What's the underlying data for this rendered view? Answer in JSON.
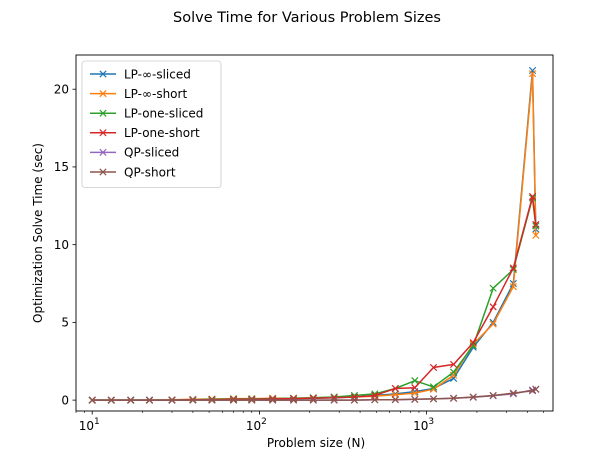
{
  "chart_data": {
    "type": "line",
    "title": "Solve Time for Various Problem Sizes",
    "xlabel": "Problem size (N)",
    "ylabel": "Optimization Solve Time (sec)",
    "xscale": "log",
    "xlim": [
      8,
      5700
    ],
    "ylim": [
      -0.7,
      22.2
    ],
    "xticks": [
      {
        "value": 10,
        "base": "10",
        "exp": "1"
      },
      {
        "value": 100,
        "base": "10",
        "exp": "2"
      },
      {
        "value": 1000,
        "base": "10",
        "exp": "3"
      }
    ],
    "yticks": [
      0,
      5,
      10,
      15,
      20
    ],
    "marker": "x",
    "legend_position": "top-left",
    "grid": false,
    "x": [
      10,
      13,
      17,
      22,
      30,
      40,
      52,
      70,
      90,
      120,
      160,
      210,
      280,
      370,
      490,
      650,
      850,
      1100,
      1450,
      1900,
      2500,
      3300,
      4300,
      4500
    ],
    "series": [
      {
        "name": "LP-∞-sliced",
        "color": "#1f77b4",
        "values": [
          0.0,
          0.0,
          0.0,
          0.0,
          0.0,
          0.02,
          0.03,
          0.05,
          0.05,
          0.08,
          0.1,
          0.12,
          0.15,
          0.2,
          0.3,
          0.4,
          0.55,
          0.75,
          1.4,
          3.4,
          5.0,
          7.5,
          21.2,
          11.0
        ]
      },
      {
        "name": "LP-∞-short",
        "color": "#ff7f0e",
        "values": [
          0.0,
          0.0,
          0.0,
          0.0,
          0.02,
          0.05,
          0.07,
          0.1,
          0.1,
          0.12,
          0.12,
          0.15,
          0.18,
          0.2,
          0.25,
          0.35,
          0.45,
          0.7,
          1.6,
          3.6,
          4.9,
          7.3,
          21.0,
          10.6
        ]
      },
      {
        "name": "LP-one-sliced",
        "color": "#2ca02c",
        "values": [
          0.0,
          0.0,
          0.0,
          0.0,
          0.0,
          0.03,
          0.05,
          0.07,
          0.08,
          0.1,
          0.12,
          0.15,
          0.2,
          0.3,
          0.4,
          0.75,
          1.25,
          0.85,
          1.8,
          3.5,
          7.2,
          8.4,
          13.0,
          11.2
        ]
      },
      {
        "name": "LP-one-short",
        "color": "#d62728",
        "values": [
          0.0,
          0.0,
          0.0,
          0.0,
          0.0,
          0.02,
          0.03,
          0.05,
          0.05,
          0.08,
          0.1,
          0.12,
          0.15,
          0.2,
          0.3,
          0.75,
          0.8,
          2.1,
          2.3,
          3.7,
          6.0,
          8.5,
          13.1,
          11.3
        ]
      },
      {
        "name": "QP-sliced",
        "color": "#9467bd",
        "values": [
          0.0,
          0.0,
          0.0,
          0.0,
          0.0,
          0.0,
          0.0,
          0.0,
          0.0,
          0.0,
          0.0,
          0.0,
          0.0,
          0.0,
          0.02,
          0.03,
          0.05,
          0.08,
          0.12,
          0.18,
          0.28,
          0.4,
          0.65,
          0.7
        ]
      },
      {
        "name": "QP-short",
        "color": "#8c564b",
        "values": [
          0.0,
          0.0,
          0.0,
          0.0,
          0.0,
          0.0,
          0.0,
          0.0,
          0.0,
          0.0,
          0.0,
          0.0,
          0.0,
          0.0,
          0.02,
          0.03,
          0.05,
          0.08,
          0.12,
          0.2,
          0.3,
          0.45,
          0.6,
          0.7
        ]
      }
    ]
  }
}
